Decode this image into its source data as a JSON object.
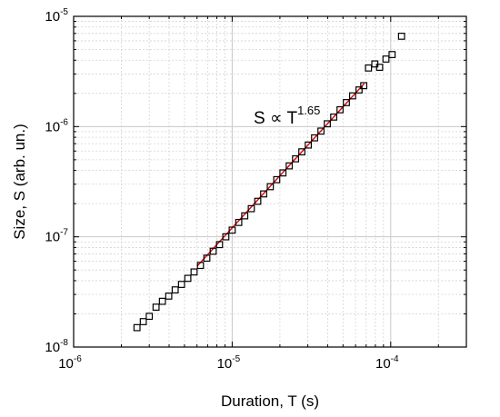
{
  "chart_data": {
    "type": "scatter",
    "xlabel": "Duration, T (s)",
    "ylabel": "Size, S (arb. un.)",
    "xscale": "log",
    "yscale": "log",
    "xlim": [
      1e-06,
      0.0003
    ],
    "ylim": [
      1e-08,
      1e-05
    ],
    "grid": true,
    "x_ticks": [
      {
        "base": "10",
        "exp": "-6"
      },
      {
        "base": "10",
        "exp": "-5"
      },
      {
        "base": "10",
        "exp": "-4"
      }
    ],
    "y_ticks": [
      {
        "base": "10",
        "exp": "-8"
      },
      {
        "base": "10",
        "exp": "-7"
      },
      {
        "base": "10",
        "exp": "-6"
      },
      {
        "base": "10",
        "exp": "-5"
      }
    ],
    "annotation": {
      "text": "S ∝ T",
      "sup": "1.65"
    },
    "series": [
      {
        "marker": "open-square",
        "x": [
          2.51e-06,
          2.75e-06,
          3e-06,
          3.31e-06,
          3.63e-06,
          3.98e-06,
          4.37e-06,
          4.79e-06,
          5.25e-06,
          5.75e-06,
          6.31e-06,
          6.92e-06,
          7.59e-06,
          8.32e-06,
          9.12e-06,
          1e-05,
          1.1e-05,
          1.2e-05,
          1.32e-05,
          1.45e-05,
          1.58e-05,
          1.74e-05,
          1.91e-05,
          2.09e-05,
          2.29e-05,
          2.51e-05,
          2.75e-05,
          3.02e-05,
          3.31e-05,
          3.63e-05,
          3.98e-05,
          4.37e-05,
          4.79e-05,
          5.25e-05,
          5.75e-05,
          6.31e-05,
          6.76e-05,
          7.24e-05,
          7.94e-05,
          8.51e-05,
          9.33e-05,
          0.000102,
          0.000117
        ],
        "y": [
          1.5e-08,
          1.7e-08,
          1.9e-08,
          2.3e-08,
          2.6e-08,
          2.9e-08,
          3.3e-08,
          3.7e-08,
          4.2e-08,
          4.8e-08,
          5.5e-08,
          6.4e-08,
          7.4e-08,
          8.5e-08,
          1e-07,
          1.15e-07,
          1.35e-07,
          1.55e-07,
          1.8e-07,
          2.1e-07,
          2.45e-07,
          2.85e-07,
          3.3e-07,
          3.8e-07,
          4.4e-07,
          5.1e-07,
          5.9e-07,
          6.8e-07,
          7.9e-07,
          9.1e-07,
          1.06e-06,
          1.22e-06,
          1.42e-06,
          1.65e-06,
          1.9e-06,
          2.15e-06,
          2.35e-06,
          3.4e-06,
          3.7e-06,
          3.45e-06,
          4.1e-06,
          4.5e-06,
          6.6e-06
        ]
      },
      {
        "marker": "line",
        "color": "#e00000",
        "x": [
          6e-06,
          6.8e-05
        ],
        "y": [
          5.4e-08,
          2.45e-06
        ]
      }
    ]
  }
}
